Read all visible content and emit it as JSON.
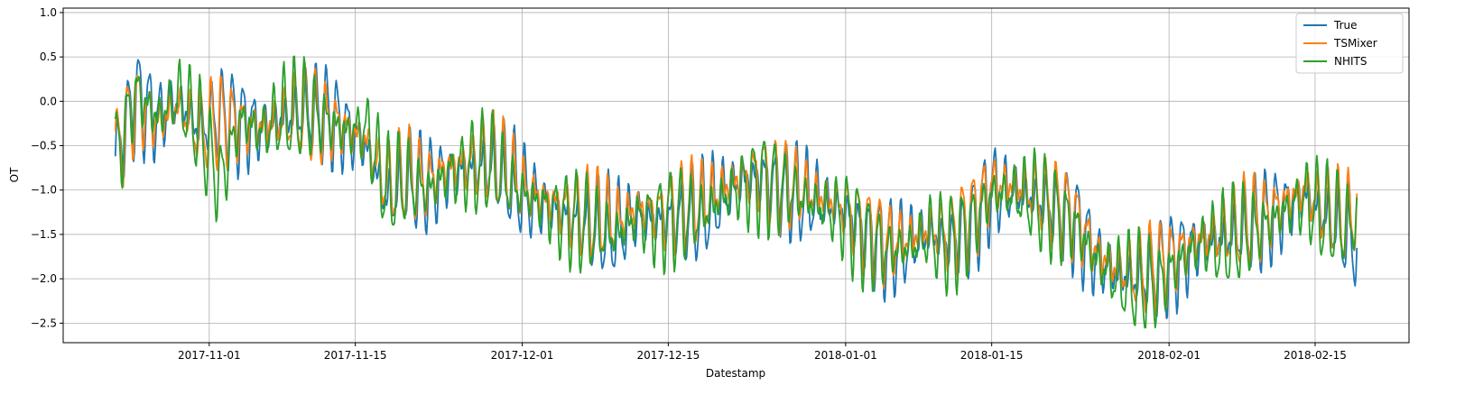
{
  "chart_data": {
    "type": "line",
    "title": "",
    "xlabel": "Datestamp",
    "ylabel": "OT",
    "x_start": "2017-10-23",
    "x_end": "2018-02-19",
    "xlim": [
      "2017-10-18",
      "2018-02-24"
    ],
    "ylim": [
      -2.72,
      1.05
    ],
    "xticks": [
      "2017-11-01",
      "2017-11-15",
      "2017-12-01",
      "2017-12-15",
      "2018-01-01",
      "2018-01-15",
      "2018-02-01",
      "2018-02-15"
    ],
    "yticks": [
      1.0,
      0.5,
      0.0,
      -0.5,
      -1.0,
      -1.5,
      -2.0,
      -2.5
    ],
    "ytick_labels": [
      "1.0",
      "0.5",
      "0.0",
      "−0.5",
      "−1.0",
      "−1.5",
      "−2.0",
      "−2.5"
    ],
    "grid": true,
    "legend_position": "top-right",
    "series": [
      {
        "name": "True",
        "color": "#1f77b4",
        "x": [
          "2017-10-23",
          "2017-10-25",
          "2017-10-27",
          "2017-10-29",
          "2017-10-31",
          "2017-11-02",
          "2017-11-04",
          "2017-11-06",
          "2017-11-08",
          "2017-11-10",
          "2017-11-12",
          "2017-11-14",
          "2017-11-16",
          "2017-11-18",
          "2017-11-20",
          "2017-11-22",
          "2017-11-24",
          "2017-11-26",
          "2017-11-28",
          "2017-11-30",
          "2017-12-02",
          "2017-12-04",
          "2017-12-06",
          "2017-12-08",
          "2017-12-10",
          "2017-12-12",
          "2017-12-14",
          "2017-12-16",
          "2017-12-18",
          "2017-12-20",
          "2017-12-22",
          "2017-12-24",
          "2017-12-26",
          "2017-12-28",
          "2017-12-30",
          "2018-01-01",
          "2018-01-03",
          "2018-01-05",
          "2018-01-07",
          "2018-01-09",
          "2018-01-11",
          "2018-01-13",
          "2018-01-15",
          "2018-01-17",
          "2018-01-19",
          "2018-01-21",
          "2018-01-23",
          "2018-01-25",
          "2018-01-27",
          "2018-01-29",
          "2018-01-31",
          "2018-02-02",
          "2018-02-04",
          "2018-02-06",
          "2018-02-08",
          "2018-02-10",
          "2018-02-12",
          "2018-02-14",
          "2018-02-16",
          "2018-02-18",
          "2018-02-19"
        ],
        "values": [
          -0.62,
          0.05,
          -0.2,
          0.0,
          -0.3,
          -0.15,
          -0.25,
          -0.3,
          -0.2,
          -0.1,
          -0.15,
          -0.3,
          -0.5,
          -1.1,
          -0.9,
          -0.95,
          -0.8,
          -0.75,
          -0.7,
          -0.9,
          -1.1,
          -1.2,
          -1.35,
          -1.4,
          -1.45,
          -1.3,
          -1.35,
          -1.3,
          -1.25,
          -1.1,
          -0.9,
          -0.85,
          -1.0,
          -1.05,
          -1.15,
          -1.25,
          -1.5,
          -1.65,
          -1.6,
          -1.5,
          -1.6,
          -1.4,
          -1.0,
          -1.0,
          -1.1,
          -1.2,
          -1.35,
          -1.75,
          -1.95,
          -2.0,
          -1.9,
          -1.75,
          -1.6,
          -1.55,
          -1.45,
          -1.35,
          -1.2,
          -1.05,
          -1.3,
          -1.5,
          -1.58
        ]
      },
      {
        "name": "TSMixer",
        "color": "#ff7f0e",
        "x": [
          "2017-10-23",
          "2017-10-25",
          "2017-10-27",
          "2017-10-29",
          "2017-10-31",
          "2017-11-02",
          "2017-11-04",
          "2017-11-06",
          "2017-11-08",
          "2017-11-10",
          "2017-11-12",
          "2017-11-14",
          "2017-11-16",
          "2017-11-18",
          "2017-11-20",
          "2017-11-22",
          "2017-11-24",
          "2017-11-26",
          "2017-11-28",
          "2017-11-30",
          "2017-12-02",
          "2017-12-04",
          "2017-12-06",
          "2017-12-08",
          "2017-12-10",
          "2017-12-12",
          "2017-12-14",
          "2017-12-16",
          "2017-12-18",
          "2017-12-20",
          "2017-12-22",
          "2017-12-24",
          "2017-12-26",
          "2017-12-28",
          "2017-12-30",
          "2018-01-01",
          "2018-01-03",
          "2018-01-05",
          "2018-01-07",
          "2018-01-09",
          "2018-01-11",
          "2018-01-13",
          "2018-01-15",
          "2018-01-17",
          "2018-01-19",
          "2018-01-21",
          "2018-01-23",
          "2018-01-25",
          "2018-01-27",
          "2018-01-29",
          "2018-01-31",
          "2018-02-02",
          "2018-02-04",
          "2018-02-06",
          "2018-02-08",
          "2018-02-10",
          "2018-02-12",
          "2018-02-14",
          "2018-02-16",
          "2018-02-18",
          "2018-02-19"
        ],
        "values": [
          -0.6,
          0.0,
          -0.25,
          -0.05,
          -0.35,
          -0.2,
          -0.25,
          -0.3,
          -0.2,
          -0.15,
          -0.2,
          -0.3,
          -0.45,
          -0.95,
          -0.85,
          -0.9,
          -0.75,
          -0.7,
          -0.65,
          -0.85,
          -1.05,
          -1.15,
          -1.25,
          -1.3,
          -1.35,
          -1.2,
          -1.25,
          -1.2,
          -1.15,
          -1.0,
          -0.85,
          -0.8,
          -0.95,
          -1.0,
          -1.1,
          -1.2,
          -1.45,
          -1.6,
          -1.55,
          -1.45,
          -1.5,
          -1.3,
          -0.95,
          -0.95,
          -1.05,
          -1.15,
          -1.3,
          -1.7,
          -1.9,
          -1.95,
          -1.85,
          -1.7,
          -1.55,
          -1.5,
          -1.4,
          -1.3,
          -1.15,
          -1.0,
          -1.25,
          -1.35,
          -1.22
        ]
      },
      {
        "name": "NHITS",
        "color": "#2ca02c",
        "x": [
          "2017-10-23",
          "2017-10-25",
          "2017-10-27",
          "2017-10-29",
          "2017-10-31",
          "2017-11-02",
          "2017-11-04",
          "2017-11-06",
          "2017-11-08",
          "2017-11-10",
          "2017-11-12",
          "2017-11-14",
          "2017-11-16",
          "2017-11-18",
          "2017-11-20",
          "2017-11-22",
          "2017-11-24",
          "2017-11-26",
          "2017-11-28",
          "2017-11-30",
          "2017-12-02",
          "2017-12-04",
          "2017-12-06",
          "2017-12-08",
          "2017-12-10",
          "2017-12-12",
          "2017-12-14",
          "2017-12-16",
          "2017-12-18",
          "2017-12-20",
          "2017-12-22",
          "2017-12-24",
          "2017-12-26",
          "2017-12-28",
          "2017-12-30",
          "2018-01-01",
          "2018-01-03",
          "2018-01-05",
          "2018-01-07",
          "2018-01-09",
          "2018-01-11",
          "2018-01-13",
          "2018-01-15",
          "2018-01-17",
          "2018-01-19",
          "2018-01-21",
          "2018-01-23",
          "2018-01-25",
          "2018-01-27",
          "2018-01-29",
          "2018-01-31",
          "2018-02-02",
          "2018-02-04",
          "2018-02-06",
          "2018-02-08",
          "2018-02-10",
          "2018-02-12",
          "2018-02-14",
          "2018-02-16",
          "2018-02-18",
          "2018-02-19"
        ],
        "values": [
          -0.65,
          0.1,
          -0.2,
          0.05,
          -0.3,
          -0.92,
          -0.2,
          -0.35,
          -0.15,
          -0.1,
          -0.2,
          -0.35,
          -0.3,
          -1.0,
          -0.9,
          -1.0,
          -0.8,
          -0.75,
          -0.7,
          -0.95,
          -1.1,
          -1.25,
          -1.35,
          -1.45,
          -1.5,
          -1.3,
          -1.35,
          -1.3,
          -1.3,
          -1.1,
          -0.95,
          -0.9,
          -1.0,
          -1.1,
          -1.2,
          -1.3,
          -1.55,
          -1.7,
          -1.65,
          -1.5,
          -1.6,
          -1.4,
          -1.05,
          -1.05,
          -1.1,
          -1.25,
          -1.4,
          -1.8,
          -2.0,
          -2.05,
          -2.05,
          -1.8,
          -1.6,
          -1.6,
          -1.5,
          -1.4,
          -1.25,
          -1.1,
          -1.3,
          -1.4,
          -1.35
        ]
      }
    ]
  }
}
